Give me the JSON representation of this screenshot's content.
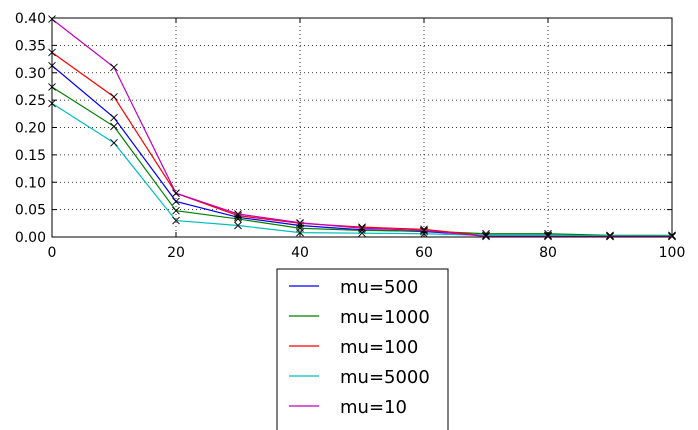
{
  "chart_data": {
    "type": "line",
    "title": "",
    "xlabel": "",
    "ylabel": "",
    "xlim": [
      0,
      100
    ],
    "ylim": [
      0,
      0.4
    ],
    "xticks": [
      "0",
      "20",
      "40",
      "60",
      "80",
      "100"
    ],
    "yticks": [
      "0.00",
      "0.05",
      "0.10",
      "0.15",
      "0.20",
      "0.25",
      "0.30",
      "0.35",
      "0.40"
    ],
    "grid": true,
    "marker": "x",
    "legend_position": "below-center",
    "x": [
      0,
      10,
      20,
      30,
      40,
      50,
      60,
      70,
      80,
      90,
      100
    ],
    "series": [
      {
        "name": "mu=500",
        "color": "#0000ff",
        "values": [
          0.313,
          0.218,
          0.065,
          0.036,
          0.021,
          0.013,
          0.01,
          0.003,
          0.003,
          0.002,
          0.002
        ]
      },
      {
        "name": "mu=1000",
        "color": "#008000",
        "values": [
          0.274,
          0.202,
          0.048,
          0.033,
          0.016,
          0.012,
          0.011,
          0.006,
          0.006,
          0.003,
          0.003
        ]
      },
      {
        "name": "mu=100",
        "color": "#ff0000",
        "values": [
          0.337,
          0.256,
          0.08,
          0.039,
          0.025,
          0.018,
          0.014,
          0.002,
          0.002,
          0.001,
          0.001
        ]
      },
      {
        "name": "mu=5000",
        "color": "#00bfbf",
        "values": [
          0.244,
          0.172,
          0.03,
          0.021,
          0.008,
          0.007,
          0.006,
          0.003,
          0.003,
          0.002,
          0.002
        ]
      },
      {
        "name": "mu=10",
        "color": "#bf00bf",
        "values": [
          0.398,
          0.31,
          0.08,
          0.042,
          0.026,
          0.016,
          0.012,
          0.001,
          0.001,
          0.001,
          0.001
        ]
      }
    ]
  }
}
